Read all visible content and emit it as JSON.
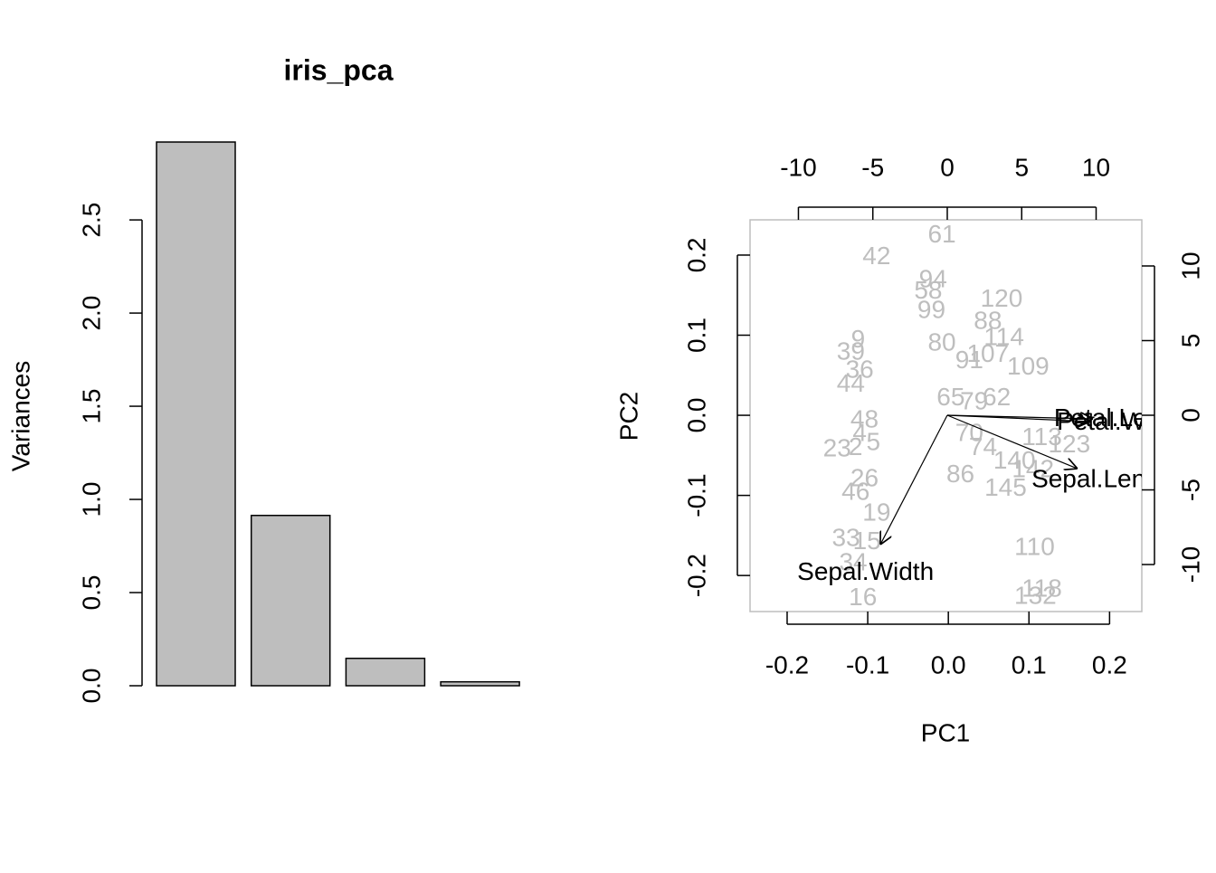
{
  "chart_data": [
    {
      "type": "bar",
      "title": "iris_pca",
      "ylabel": "Variances",
      "categories": [
        null,
        null,
        null,
        null
      ],
      "values": [
        2.918,
        0.914,
        0.147,
        0.021
      ],
      "color": "#bebebe",
      "ylim": [
        0,
        2.918
      ],
      "yticks": [
        {
          "value": 0,
          "label": "0.0"
        },
        0.5,
        {
          "value": 1,
          "label": "1.0"
        },
        1.5,
        {
          "value": 2,
          "label": "2.0"
        },
        2.5
      ]
    },
    {
      "type": "biplot",
      "xlabel": "PC1",
      "ylabel": "PC2",
      "xlim": [
        -0.246,
        0.24
      ],
      "ylim": [
        -0.245,
        0.244
      ],
      "xticks": [
        -0.2,
        -0.1,
        {
          "value": 0,
          "label": "0.0"
        },
        0.1,
        0.2
      ],
      "yticks": [
        -0.2,
        -0.1,
        {
          "value": 0,
          "label": "0.0"
        },
        0.1,
        0.2
      ],
      "x2lim": [
        -13.25,
        13.07
      ],
      "x2ticks": [
        -10,
        -5,
        0,
        5,
        10
      ],
      "y2lim": [
        -13.15,
        13.09
      ],
      "y2ticks": [
        -10,
        -5,
        0,
        5,
        10
      ],
      "points": {
        "color": "#bebebe",
        "labels": [
          "61",
          "42",
          "94",
          "58",
          "120",
          "99",
          "9",
          "39",
          "88",
          "114",
          "107",
          "109",
          "44",
          "23",
          "110",
          "132",
          "118",
          "16",
          "34",
          "33",
          "15",
          "19",
          "26",
          "46",
          "4",
          "2",
          "48",
          "5",
          "36",
          "86",
          "74",
          "79",
          "80",
          "65",
          "62",
          "123",
          "145",
          "142",
          "113",
          "70",
          "140",
          "91"
        ],
        "x": [
          -0.008,
          -0.089,
          -0.019,
          -0.025,
          0.066,
          -0.021,
          -0.112,
          -0.121,
          0.049,
          0.069,
          0.049,
          0.099,
          -0.121,
          -0.138,
          0.107,
          0.108,
          0.116,
          -0.106,
          -0.118,
          -0.127,
          -0.101,
          -0.089,
          -0.104,
          -0.115,
          -0.11,
          -0.115,
          -0.104,
          -0.093,
          -0.11,
          0.015,
          0.043,
          0.032,
          -0.008,
          0.003,
          0.06,
          0.15,
          0.071,
          0.105,
          0.116,
          0.026,
          0.082,
          0.026
        ],
        "y": [
          0.224,
          0.197,
          0.168,
          0.154,
          0.144,
          0.13,
          0.093,
          0.078,
          0.116,
          0.096,
          0.075,
          0.059,
          0.038,
          -0.043,
          -0.166,
          -0.227,
          -0.218,
          -0.229,
          -0.185,
          -0.155,
          -0.159,
          -0.123,
          -0.08,
          -0.097,
          -0.024,
          -0.041,
          -0.007,
          -0.035,
          0.055,
          -0.075,
          -0.041,
          0.016,
          0.089,
          0.021,
          0.021,
          -0.038,
          -0.092,
          -0.069,
          -0.029,
          -0.024,
          -0.058,
          0.067
        ]
      },
      "loadings": {
        "color": "#000000",
        "axis": "y2",
        "labels": [
          "Sepal.Length",
          "Sepal.Width",
          "Petal.Length",
          "Petal.Width"
        ],
        "x": [
          8.75,
          -4.5,
          9.79,
          9.6
        ],
        "y": [
          -3.58,
          -8.67,
          -0.24,
          -0.42
        ]
      }
    }
  ]
}
